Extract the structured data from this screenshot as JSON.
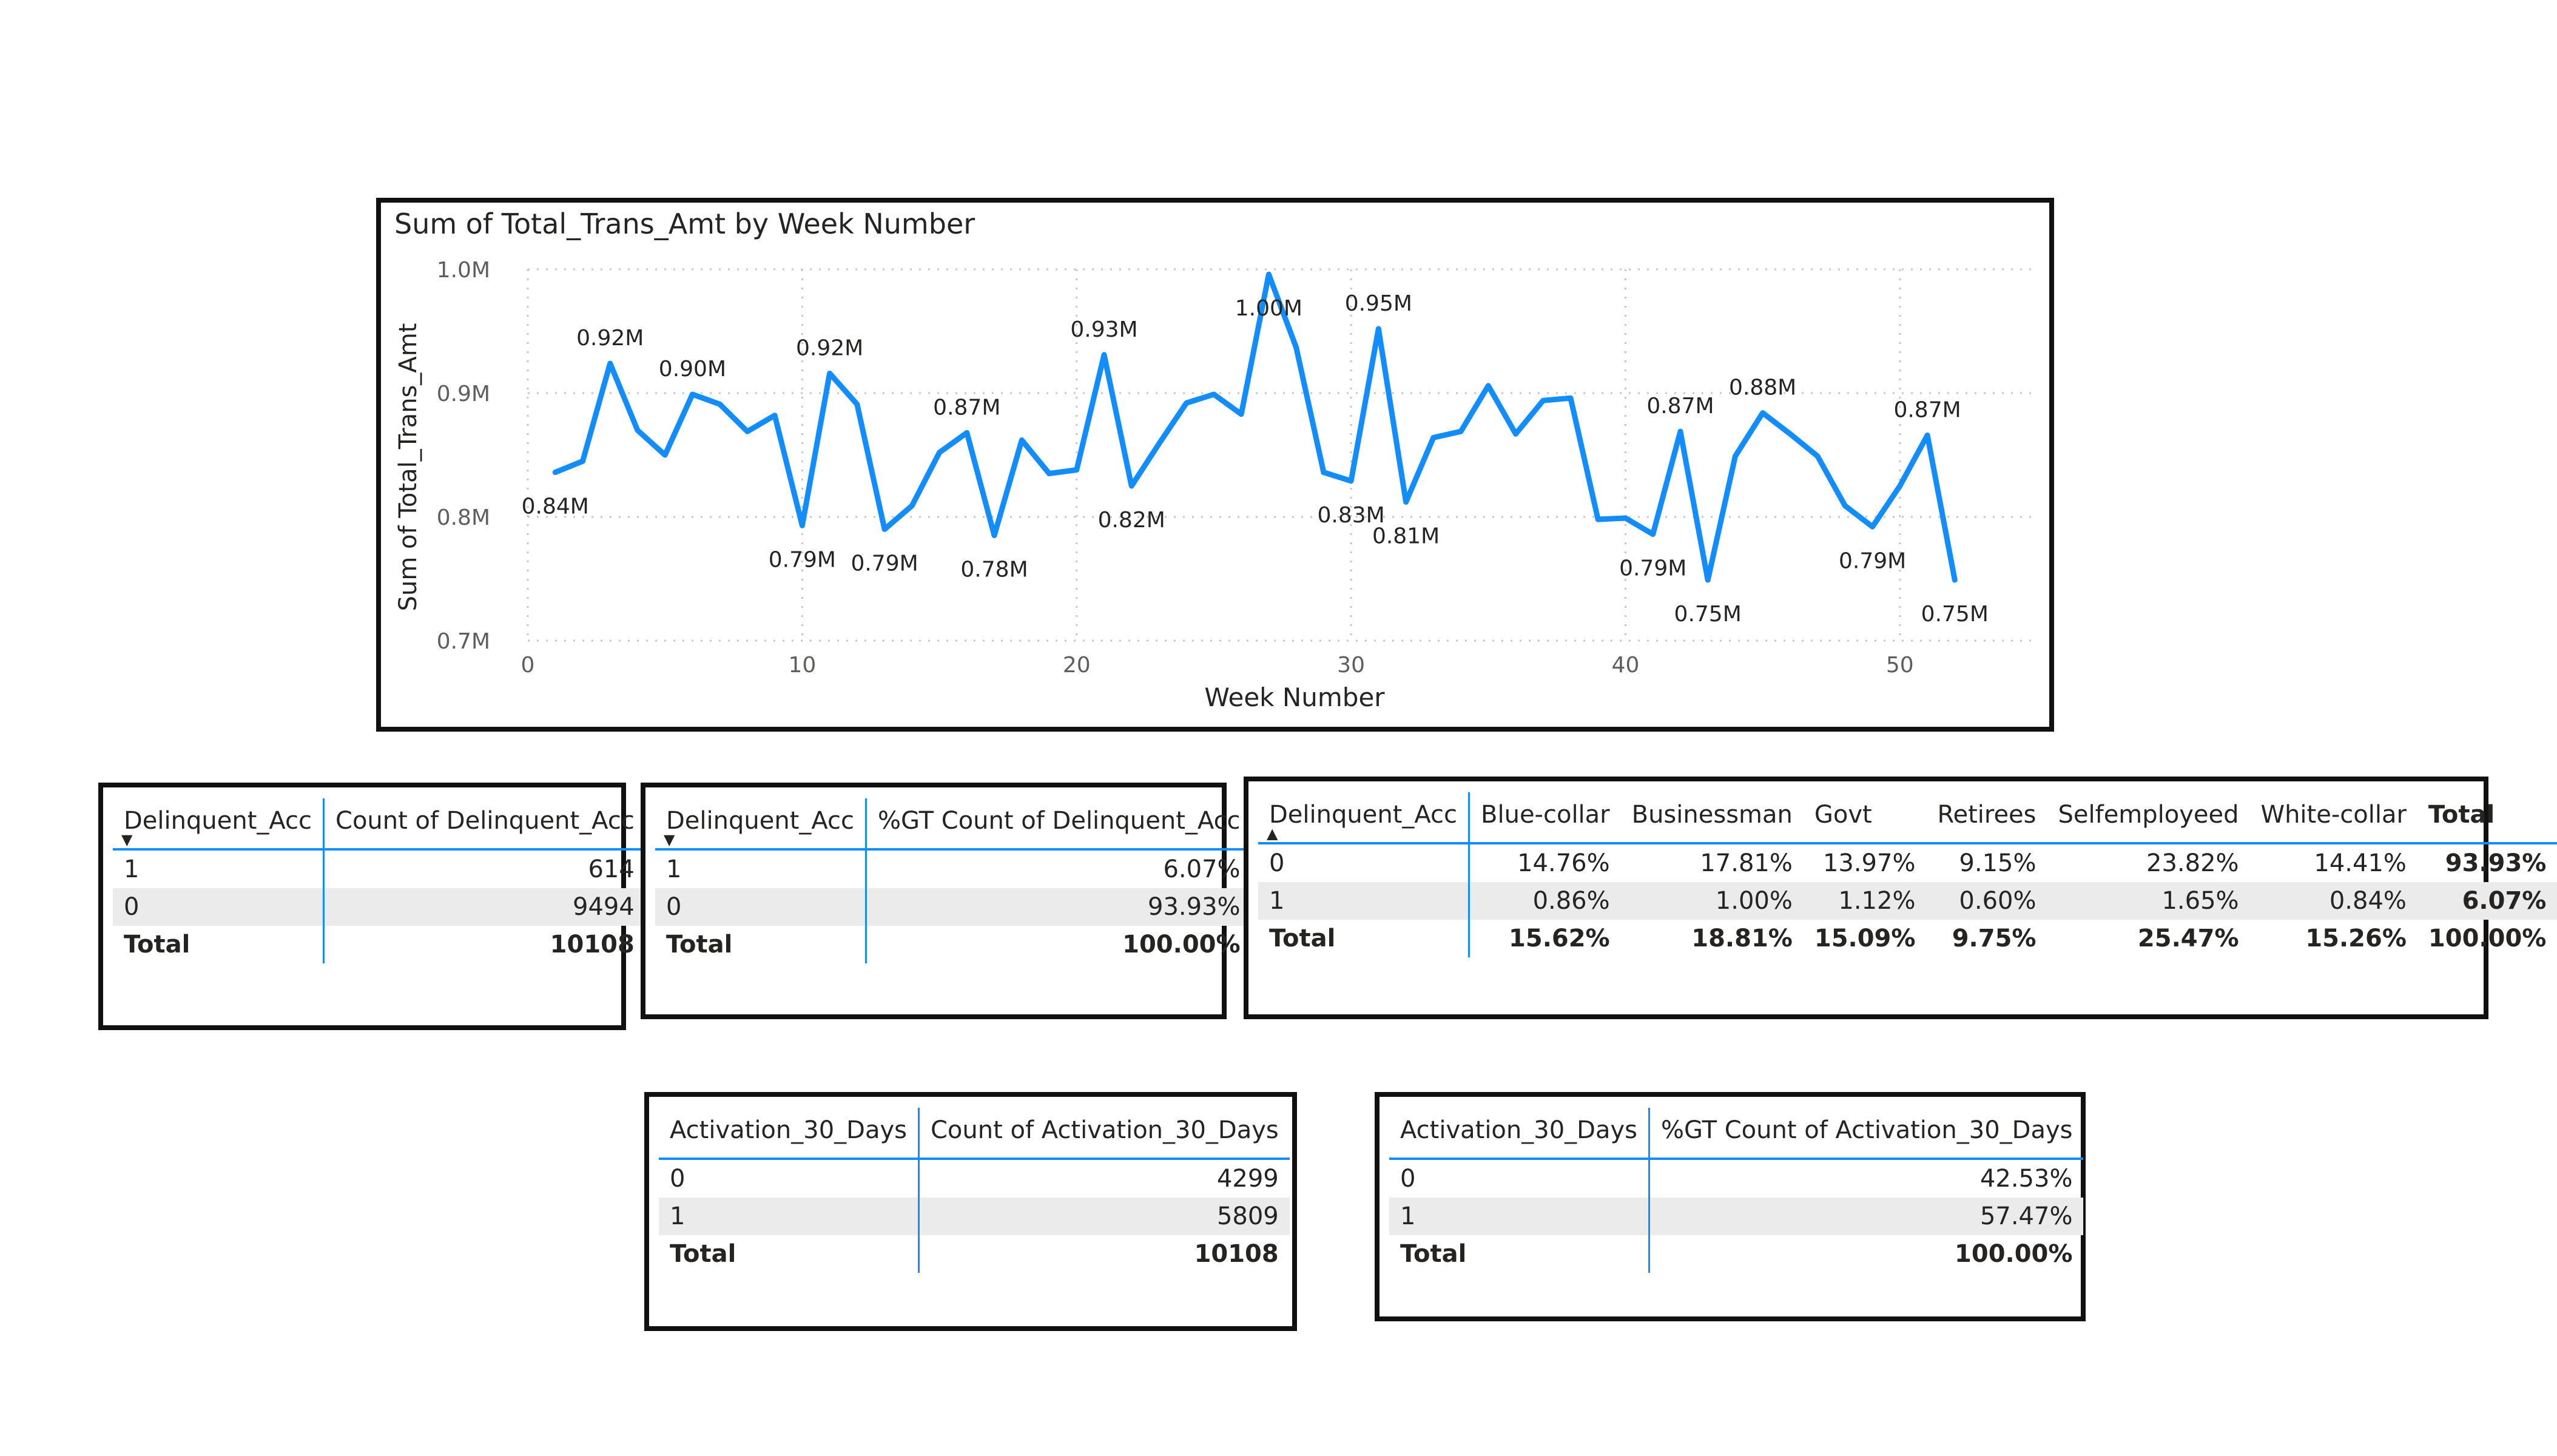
{
  "line_chart": {
    "title": "Sum of Total_Trans_Amt by Week Number",
    "xlabel": "Week Number",
    "ylabel": "Sum of Total_Trans_Amt",
    "line_color": "#118DFF"
  },
  "chart_data": {
    "type": "line",
    "title": "Sum of Total_Trans_Amt by Week Number",
    "xlabel": "Week Number",
    "ylabel": "Sum of Total_Trans_Amt",
    "xlim": [
      0,
      55
    ],
    "ylim": [
      0.7,
      1.0
    ],
    "x_ticks": [
      0,
      10,
      20,
      30,
      40,
      50
    ],
    "x_tick_labels": [
      "0",
      "10",
      "20",
      "30",
      "40",
      "50"
    ],
    "y_ticks": [
      0.7,
      0.8,
      0.9,
      1.0
    ],
    "y_tick_labels": [
      "0.7M",
      "0.8M",
      "0.9M",
      "1.0M"
    ],
    "grid": true,
    "series": [
      {
        "x": [
          1,
          2,
          3,
          4,
          5,
          6,
          7,
          8,
          9,
          10,
          11,
          12,
          13,
          14,
          15,
          16,
          17,
          18,
          19,
          20,
          21,
          22,
          23,
          24,
          25,
          26,
          27,
          28,
          29,
          30,
          31,
          32,
          33,
          34,
          35,
          36,
          37,
          38,
          39,
          40,
          41,
          42,
          43,
          44,
          45,
          46,
          47,
          48,
          49,
          50,
          51,
          52
        ],
        "y": [
          0.836,
          0.845,
          0.924,
          0.87,
          0.85,
          0.899,
          0.891,
          0.869,
          0.882,
          0.793,
          0.916,
          0.891,
          0.79,
          0.809,
          0.852,
          0.868,
          0.785,
          0.862,
          0.835,
          0.838,
          0.931,
          0.825,
          0.859,
          0.892,
          0.899,
          0.883,
          0.996,
          0.937,
          0.836,
          0.829,
          0.952,
          0.812,
          0.864,
          0.869,
          0.906,
          0.867,
          0.894,
          0.896,
          0.798,
          0.799,
          0.786,
          0.869,
          0.749,
          0.849,
          0.884,
          0.867,
          0.849,
          0.809,
          0.792,
          0.825,
          0.866,
          0.749
        ]
      }
    ],
    "data_labels": [
      {
        "x": 1,
        "y": 0.836,
        "text": "0.84M",
        "pos": "below"
      },
      {
        "x": 3,
        "y": 0.924,
        "text": "0.92M",
        "pos": "above"
      },
      {
        "x": 6,
        "y": 0.899,
        "text": "0.90M",
        "pos": "above"
      },
      {
        "x": 10,
        "y": 0.793,
        "text": "0.79M",
        "pos": "below"
      },
      {
        "x": 11,
        "y": 0.916,
        "text": "0.92M",
        "pos": "above"
      },
      {
        "x": 13,
        "y": 0.79,
        "text": "0.79M",
        "pos": "below"
      },
      {
        "x": 16,
        "y": 0.868,
        "text": "0.87M",
        "pos": "above"
      },
      {
        "x": 17,
        "y": 0.785,
        "text": "0.78M",
        "pos": "below"
      },
      {
        "x": 21,
        "y": 0.931,
        "text": "0.93M",
        "pos": "above"
      },
      {
        "x": 22,
        "y": 0.825,
        "text": "0.82M",
        "pos": "below"
      },
      {
        "x": 27,
        "y": 0.996,
        "text": "1.00M",
        "pos": "below"
      },
      {
        "x": 30,
        "y": 0.829,
        "text": "0.83M",
        "pos": "below"
      },
      {
        "x": 31,
        "y": 0.952,
        "text": "0.95M",
        "pos": "above"
      },
      {
        "x": 32,
        "y": 0.812,
        "text": "0.81M",
        "pos": "below"
      },
      {
        "x": 41,
        "y": 0.786,
        "text": "0.79M",
        "pos": "below"
      },
      {
        "x": 42,
        "y": 0.869,
        "text": "0.87M",
        "pos": "above"
      },
      {
        "x": 43,
        "y": 0.749,
        "text": "0.75M",
        "pos": "below"
      },
      {
        "x": 45,
        "y": 0.884,
        "text": "0.88M",
        "pos": "above"
      },
      {
        "x": 49,
        "y": 0.792,
        "text": "0.79M",
        "pos": "below"
      },
      {
        "x": 51,
        "y": 0.866,
        "text": "0.87M",
        "pos": "above"
      },
      {
        "x": 52,
        "y": 0.749,
        "text": "0.75M",
        "pos": "below"
      }
    ]
  },
  "tables": {
    "delinquent_count": {
      "headers": [
        "Delinquent_Acc",
        "Count of Delinquent_Acc"
      ],
      "sort": "descending",
      "rows": [
        [
          "1",
          "614"
        ],
        [
          "0",
          "9494"
        ]
      ],
      "total": [
        "Total",
        "10108"
      ]
    },
    "delinquent_pct": {
      "headers": [
        "Delinquent_Acc",
        "%GT Count of Delinquent_Acc"
      ],
      "sort": "descending",
      "rows": [
        [
          "1",
          "6.07%"
        ],
        [
          "0",
          "93.93%"
        ]
      ],
      "total": [
        "Total",
        "100.00%"
      ]
    },
    "delinquent_by_job": {
      "headers": [
        "Delinquent_Acc",
        "Blue-collar",
        "Businessman",
        "Govt",
        "Retirees",
        "Selfemployeed",
        "White-collar",
        "Total"
      ],
      "sort": "ascending",
      "rows": [
        [
          "0",
          "14.76%",
          "17.81%",
          "13.97%",
          "9.15%",
          "23.82%",
          "14.41%",
          "93.93%"
        ],
        [
          "1",
          "0.86%",
          "1.00%",
          "1.12%",
          "0.60%",
          "1.65%",
          "0.84%",
          "6.07%"
        ]
      ],
      "total": [
        "Total",
        "15.62%",
        "18.81%",
        "15.09%",
        "9.75%",
        "25.47%",
        "15.26%",
        "100.00%"
      ]
    },
    "activation_count": {
      "headers": [
        "Activation_30_Days",
        "Count of Activation_30_Days"
      ],
      "rows": [
        [
          "0",
          "4299"
        ],
        [
          "1",
          "5809"
        ]
      ],
      "total": [
        "Total",
        "10108"
      ]
    },
    "activation_pct": {
      "headers": [
        "Activation_30_Days",
        "%GT Count of Activation_30_Days"
      ],
      "rows": [
        [
          "0",
          "42.53%"
        ],
        [
          "1",
          "57.47%"
        ]
      ],
      "total": [
        "Total",
        "100.00%"
      ]
    }
  }
}
